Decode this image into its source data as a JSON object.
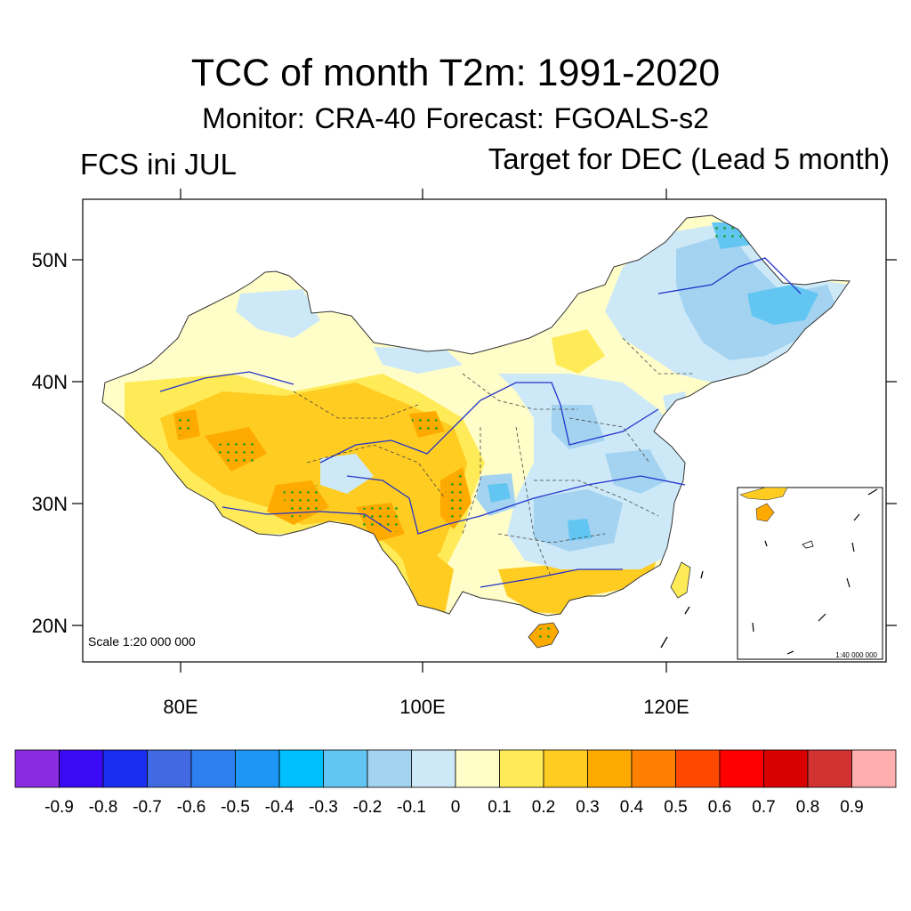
{
  "title": "TCC of month T2m: 1991-2020",
  "subtitle": "Monitor: CRA-40   Forecast: FGOALS-s2",
  "left_label": "FCS ini JUL",
  "right_label": "Target for DEC (Lead 5 month)",
  "scale_main": "Scale 1:20 000 000",
  "scale_inset": "1:40 000 000",
  "axes": {
    "lat_labels": [
      "50N",
      "40N",
      "30N",
      "20N"
    ],
    "lon_labels": [
      "80E",
      "100E",
      "120E"
    ]
  },
  "colorbar": {
    "colors": [
      "#8a2be2",
      "#3a0af5",
      "#1a2ef2",
      "#4169e1",
      "#2e7ff0",
      "#1e96f5",
      "#00bfff",
      "#63c6f2",
      "#a3d3f0",
      "#cde9f8",
      "#fffdc8",
      "#ffeb57",
      "#ffcc22",
      "#ffaa00",
      "#ff8000",
      "#ff4800",
      "#ff0000",
      "#d80000",
      "#d23232",
      "#ffafaf"
    ],
    "ticks": [
      "-0.9",
      "-0.8",
      "-0.7",
      "-0.6",
      "-0.5",
      "-0.4",
      "-0.3",
      "-0.2",
      "-0.1",
      "0",
      "0.1",
      "0.2",
      "0.3",
      "0.4",
      "0.5",
      "0.6",
      "0.7",
      "0.8",
      "0.9"
    ]
  }
}
